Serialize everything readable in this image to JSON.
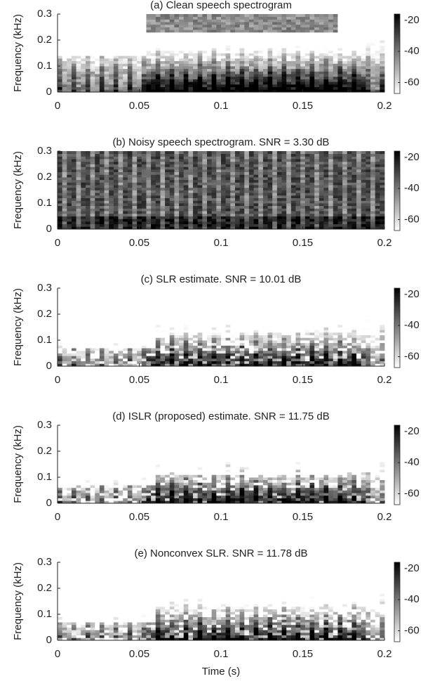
{
  "chart_data": [
    {
      "type": "spectrogram",
      "title": "(a) Clean speech spectrogram",
      "ylabel": "Frequency (kHz)",
      "xlim": [
        0,
        0.2
      ],
      "xticks": [
        0,
        0.05,
        0.1,
        0.15,
        0.2
      ],
      "ylim": [
        0,
        0.3
      ],
      "yticks": [
        0,
        0.1,
        0.2,
        0.3
      ],
      "clim": [
        -67,
        -16
      ],
      "cticks": [
        -20,
        -40,
        -60
      ]
    },
    {
      "type": "spectrogram",
      "title": "(b) Noisy speech spectrogram. SNR = 3.30 dB",
      "ylabel": "Frequency (kHz)",
      "xlim": [
        0,
        0.2
      ],
      "xticks": [
        0,
        0.05,
        0.1,
        0.15,
        0.2
      ],
      "ylim": [
        0,
        0.3
      ],
      "yticks": [
        0,
        0.1,
        0.2,
        0.3
      ],
      "clim": [
        -67,
        -16
      ],
      "cticks": [
        -20,
        -40,
        -60
      ]
    },
    {
      "type": "spectrogram",
      "title": "(c) SLR estimate. SNR = 10.01 dB",
      "ylabel": "Frequency (kHz)",
      "xlim": [
        0,
        0.2
      ],
      "xticks": [
        0,
        0.05,
        0.1,
        0.15,
        0.2
      ],
      "ylim": [
        0,
        0.3
      ],
      "yticks": [
        0,
        0.1,
        0.2,
        0.3
      ],
      "clim": [
        -67,
        -16
      ],
      "cticks": [
        -20,
        -40,
        -60
      ]
    },
    {
      "type": "spectrogram",
      "title": "(d) ISLR (proposed) estimate. SNR = 11.75 dB",
      "ylabel": "Frequency (kHz)",
      "xlim": [
        0,
        0.2
      ],
      "xticks": [
        0,
        0.05,
        0.1,
        0.15,
        0.2
      ],
      "ylim": [
        0,
        0.3
      ],
      "yticks": [
        0,
        0.1,
        0.2,
        0.3
      ],
      "clim": [
        -67,
        -16
      ],
      "cticks": [
        -20,
        -40,
        -60
      ]
    },
    {
      "type": "spectrogram",
      "title": "(e) Nonconvex SLR. SNR = 11.78 dB",
      "ylabel": "Frequency (kHz)",
      "xlabel": "Time (s)",
      "xlim": [
        0,
        0.2
      ],
      "xticks": [
        0,
        0.05,
        0.1,
        0.15,
        0.2
      ],
      "ylim": [
        0,
        0.3
      ],
      "yticks": [
        0,
        0.1,
        0.2,
        0.3
      ],
      "clim": [
        -67,
        -16
      ],
      "cticks": [
        -20,
        -40,
        -60
      ]
    }
  ]
}
